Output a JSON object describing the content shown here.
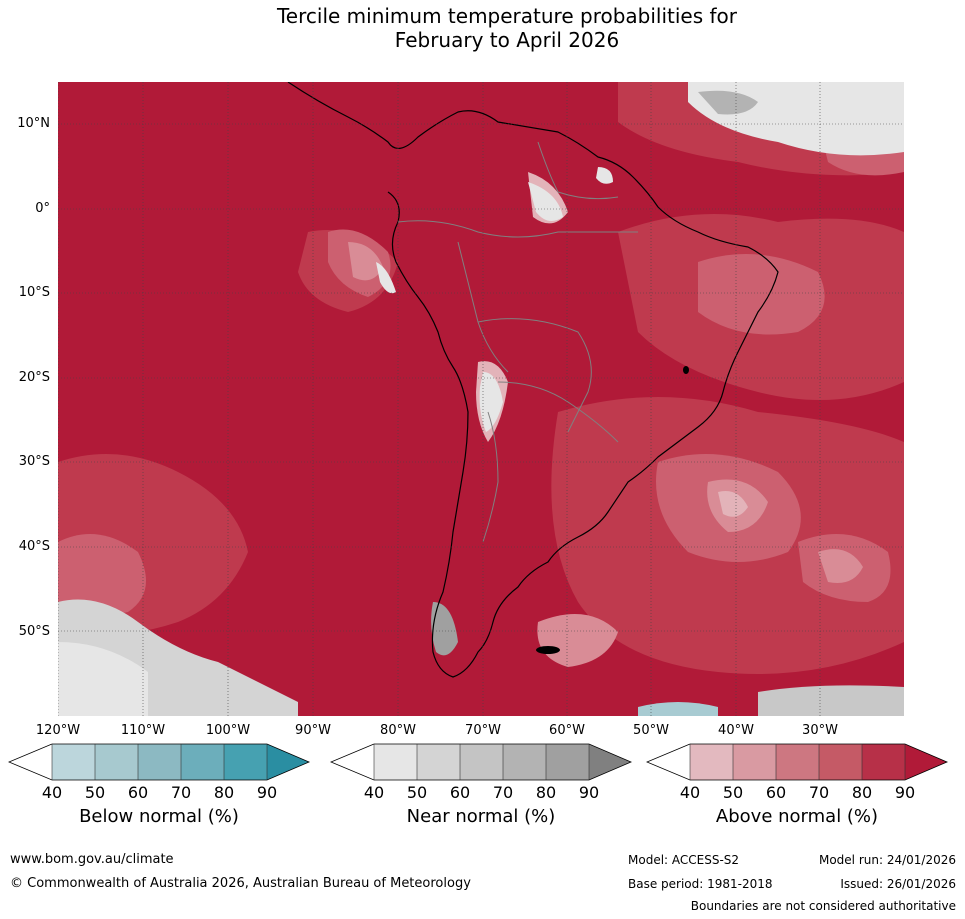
{
  "title": {
    "line1": "Tercile minimum temperature probabilities for",
    "line2": "February to April 2026"
  },
  "map": {
    "latitudes": [
      "10°N",
      "0°",
      "10°S",
      "20°S",
      "30°S",
      "40°S",
      "50°S"
    ],
    "longitudes": [
      "120°W",
      "110°W",
      "100°W",
      "90°W",
      "80°W",
      "70°W",
      "60°W",
      "50°W",
      "40°W",
      "30°W"
    ],
    "dominant_category": "Above normal (90%)",
    "colors": {
      "above_90": "#b11a38",
      "above_80": "#bf3a4e",
      "above_70": "#cc6070",
      "above_60": "#d98c96",
      "above_50": "#e3b3b9",
      "near_60": "#c8c8c8",
      "near_40": "#e6e6e6",
      "below_50": "#a8cbd2",
      "land_outline": "#000000",
      "border": "#808080"
    }
  },
  "colorbars": [
    {
      "title": "Below normal (%)",
      "ticks": [
        "40",
        "50",
        "60",
        "70",
        "80",
        "90"
      ],
      "colors": [
        "#ffffff",
        "#bcd6dc",
        "#a7c9cf",
        "#8cb9c2",
        "#6caebb",
        "#46a1b1",
        "#2a8ea2"
      ]
    },
    {
      "title": "Near normal (%)",
      "ticks": [
        "40",
        "50",
        "60",
        "70",
        "80",
        "90"
      ],
      "colors": [
        "#ffffff",
        "#e6e6e6",
        "#d4d4d4",
        "#c4c4c4",
        "#b3b3b3",
        "#a0a0a0",
        "#808080"
      ]
    },
    {
      "title": "Above normal (%)",
      "ticks": [
        "40",
        "50",
        "60",
        "70",
        "80",
        "90"
      ],
      "colors": [
        "#ffffff",
        "#e3b9bf",
        "#d99aa2",
        "#cd7781",
        "#c55a66",
        "#b73048",
        "#b11a38"
      ]
    }
  ],
  "footer": {
    "website": "www.bom.gov.au/climate",
    "copyright": "© Commonwealth of Australia 2026, Australian Bureau of Meteorology",
    "model": "Model: ACCESS-S2",
    "model_run": "Model run: 24/01/2026",
    "base_period": "Base period: 1981-2018",
    "issued": "Issued: 26/01/2026",
    "disclaimer": "Boundaries are not considered authoritative"
  }
}
